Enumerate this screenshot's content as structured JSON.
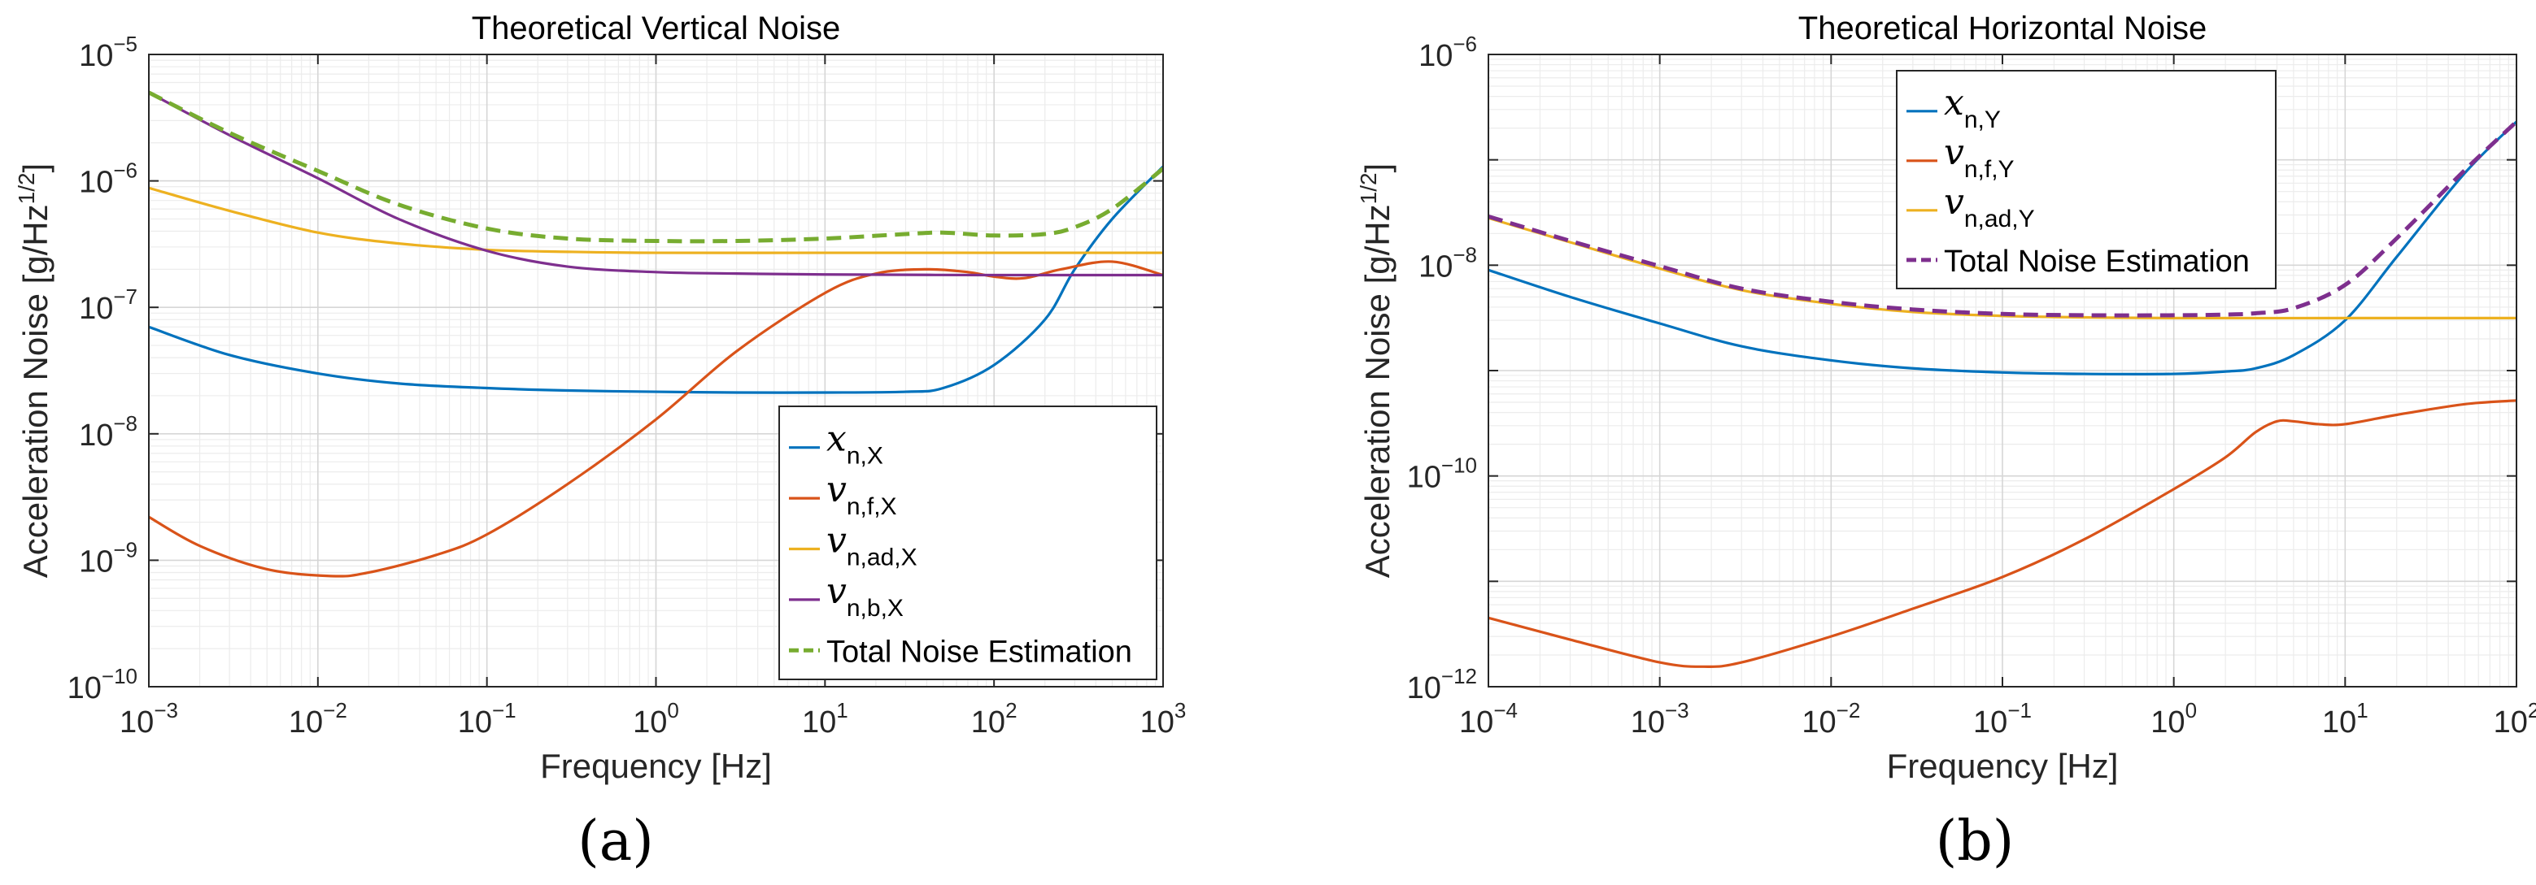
{
  "colors": {
    "blue": "#0072BD",
    "orange": "#D95319",
    "yellow": "#EDB120",
    "purple": "#7E2F8E",
    "green": "#77AC30"
  },
  "chart_data": [
    {
      "type": "line",
      "panel_label": "(a)",
      "title": "Theoretical Vertical Noise",
      "xlabel": "Frequency [Hz]",
      "ylabel": "Acceleration Noise [g/Hz",
      "ylabel_exponent": "1/2",
      "ylabel_close": "]",
      "xscale": "log",
      "yscale": "log",
      "xlim": [
        0.001,
        1000
      ],
      "ylim": [
        1e-10,
        1e-05
      ],
      "grid": true,
      "legend_position": "bottom-right",
      "xticks": [
        {
          "base": "10",
          "exp": "−3",
          "value": 0.001
        },
        {
          "base": "10",
          "exp": "−2",
          "value": 0.01
        },
        {
          "base": "10",
          "exp": "−1",
          "value": 0.1
        },
        {
          "base": "10",
          "exp": "0",
          "value": 1
        },
        {
          "base": "10",
          "exp": "1",
          "value": 10
        },
        {
          "base": "10",
          "exp": "2",
          "value": 100
        },
        {
          "base": "10",
          "exp": "3",
          "value": 1000
        }
      ],
      "yticks": [
        {
          "base": "10",
          "exp": "−10",
          "value": 1e-10
        },
        {
          "base": "10",
          "exp": "−9",
          "value": 1e-09
        },
        {
          "base": "10",
          "exp": "−8",
          "value": 1e-08
        },
        {
          "base": "10",
          "exp": "−7",
          "value": 1e-07
        },
        {
          "base": "10",
          "exp": "−6",
          "value": 1e-06
        },
        {
          "base": "10",
          "exp": "−5",
          "value": 1e-05
        }
      ],
      "series": [
        {
          "name": "x_n,X",
          "symbol": "x",
          "subscript": "n,X",
          "color": "blue",
          "dash": false,
          "x": [
            0.001,
            0.003,
            0.01,
            0.03,
            0.1,
            0.3,
            1,
            3,
            10,
            30,
            50,
            100,
            200,
            300,
            500,
            1000
          ],
          "y": [
            7e-08,
            4.2e-08,
            3e-08,
            2.5e-08,
            2.3e-08,
            2.2e-08,
            2.15e-08,
            2.12e-08,
            2.12e-08,
            2.15e-08,
            2.3e-08,
            3.5e-08,
            8e-08,
            2e-07,
            5e-07,
            1.3e-06
          ]
        },
        {
          "name": "v_n,f,X",
          "symbol": "v",
          "subscript": "n,f,X",
          "color": "orange",
          "dash": false,
          "x": [
            0.001,
            0.002,
            0.005,
            0.012,
            0.02,
            0.05,
            0.1,
            0.3,
            1,
            3,
            10,
            20,
            40,
            70,
            100,
            150,
            250,
            500,
            1000
          ],
          "y": [
            2.2e-09,
            1.3e-09,
            8.5e-10,
            7.5e-10,
            8e-10,
            1.1e-09,
            1.6e-09,
            4e-09,
            1.3e-08,
            4.5e-08,
            1.3e-07,
            1.85e-07,
            2e-07,
            1.9e-07,
            1.75e-07,
            1.7e-07,
            2e-07,
            2.3e-07,
            1.8e-07
          ]
        },
        {
          "name": "v_n,ad,X",
          "symbol": "v",
          "subscript": "n,ad,X",
          "color": "yellow",
          "dash": false,
          "x": [
            0.001,
            0.003,
            0.01,
            0.03,
            0.1,
            0.3,
            1,
            10,
            100,
            1000
          ],
          "y": [
            8.8e-07,
            5.8e-07,
            3.9e-07,
            3.2e-07,
            2.85e-07,
            2.75e-07,
            2.7e-07,
            2.7e-07,
            2.7e-07,
            2.7e-07
          ]
        },
        {
          "name": "v_n,b,X",
          "symbol": "v",
          "subscript": "n,b,X",
          "color": "purple",
          "dash": false,
          "x": [
            0.001,
            0.003,
            0.01,
            0.03,
            0.1,
            0.3,
            1,
            3,
            10,
            100,
            1000
          ],
          "y": [
            5e-06,
            2.3e-06,
            1.05e-06,
            5e-07,
            2.8e-07,
            2.1e-07,
            1.9e-07,
            1.85e-07,
            1.82e-07,
            1.8e-07,
            1.8e-07
          ]
        },
        {
          "name": "Total Noise Estimation",
          "symbol": "Total Noise Estimation",
          "subscript": "",
          "color": "green",
          "dash": true,
          "x": [
            0.001,
            0.003,
            0.01,
            0.03,
            0.1,
            0.3,
            1,
            3,
            10,
            30,
            50,
            100,
            200,
            300,
            500,
            1000
          ],
          "y": [
            5e-06,
            2.4e-06,
            1.2e-06,
            6.5e-07,
            4.2e-07,
            3.5e-07,
            3.35e-07,
            3.35e-07,
            3.5e-07,
            3.8e-07,
            3.9e-07,
            3.7e-07,
            3.8e-07,
            4.3e-07,
            6e-07,
            1.25e-06
          ]
        }
      ]
    },
    {
      "type": "line",
      "panel_label": "(b)",
      "title": "Theoretical Horizontal Noise",
      "xlabel": "Frequency [Hz]",
      "ylabel": "Acceleration Noise [g/Hz",
      "ylabel_exponent": "1/2",
      "ylabel_close": "]",
      "xscale": "log",
      "yscale": "log",
      "xlim": [
        0.0001,
        100
      ],
      "ylim": [
        1e-12,
        1e-06
      ],
      "grid": true,
      "legend_position": "top-center",
      "xticks": [
        {
          "base": "10",
          "exp": "−4",
          "value": 0.0001
        },
        {
          "base": "10",
          "exp": "−3",
          "value": 0.001
        },
        {
          "base": "10",
          "exp": "−2",
          "value": 0.01
        },
        {
          "base": "10",
          "exp": "−1",
          "value": 0.1
        },
        {
          "base": "10",
          "exp": "0",
          "value": 1
        },
        {
          "base": "10",
          "exp": "1",
          "value": 10
        },
        {
          "base": "10",
          "exp": "2",
          "value": 100
        }
      ],
      "yticks": [
        {
          "base": "10",
          "exp": "−12",
          "value": 1e-12
        },
        {
          "base": "10",
          "exp": "−10",
          "value": 1e-10
        },
        {
          "base": "10",
          "exp": "−8",
          "value": 1e-08
        },
        {
          "base": "10",
          "exp": "−6",
          "value": 1e-06
        }
      ],
      "series": [
        {
          "name": "x_n,Y",
          "symbol": "x",
          "subscript": "n,Y",
          "color": "blue",
          "dash": false,
          "x": [
            0.0001,
            0.0003,
            0.001,
            0.003,
            0.01,
            0.03,
            0.1,
            0.3,
            1,
            2,
            3,
            5,
            10,
            20,
            50,
            100
          ],
          "y": [
            9e-09,
            5e-09,
            2.8e-09,
            1.7e-09,
            1.25e-09,
            1.05e-09,
            9.6e-10,
            9.3e-10,
            9.3e-10,
            9.8e-10,
            1.05e-09,
            1.4e-09,
            3e-09,
            1.2e-08,
            7.5e-08,
            2.3e-07
          ]
        },
        {
          "name": "v_n,f,Y",
          "symbol": "v",
          "subscript": "n,f,Y",
          "color": "orange",
          "dash": false,
          "x": [
            0.0001,
            0.0003,
            0.001,
            0.0018,
            0.003,
            0.01,
            0.03,
            0.1,
            0.3,
            1,
            2,
            3,
            4,
            5,
            7,
            10,
            20,
            50,
            100
          ],
          "y": [
            4.5e-12,
            2.8e-12,
            1.7e-12,
            1.55e-12,
            1.7e-12,
            3e-12,
            5.5e-12,
            1.1e-11,
            2.5e-11,
            7.5e-11,
            1.5e-10,
            2.6e-10,
            3.3e-10,
            3.3e-10,
            3.1e-10,
            3.1e-10,
            3.8e-10,
            4.8e-10,
            5.2e-10
          ]
        },
        {
          "name": "v_n,ad,Y",
          "symbol": "v",
          "subscript": "n,ad,Y",
          "color": "yellow",
          "dash": false,
          "x": [
            0.0001,
            0.0003,
            0.001,
            0.003,
            0.01,
            0.03,
            0.1,
            0.3,
            1,
            10,
            100
          ],
          "y": [
            2.8e-08,
            1.65e-08,
            9.3e-09,
            5.8e-09,
            4.3e-09,
            3.6e-09,
            3.3e-09,
            3.2e-09,
            3.15e-09,
            3.15e-09,
            3.15e-09
          ]
        },
        {
          "name": "Total Noise Estimation",
          "symbol": "Total Noise Estimation",
          "subscript": "",
          "color": "purple",
          "dash": true,
          "x": [
            0.0001,
            0.0003,
            0.001,
            0.003,
            0.01,
            0.03,
            0.1,
            0.3,
            1,
            2,
            3,
            5,
            10,
            20,
            50,
            100
          ],
          "y": [
            2.9e-08,
            1.7e-08,
            9.8e-09,
            6e-09,
            4.5e-09,
            3.8e-09,
            3.45e-09,
            3.35e-09,
            3.35e-09,
            3.4e-09,
            3.5e-09,
            3.9e-09,
            6.5e-09,
            1.8e-08,
            8e-08,
            2.3e-07
          ]
        }
      ]
    }
  ]
}
